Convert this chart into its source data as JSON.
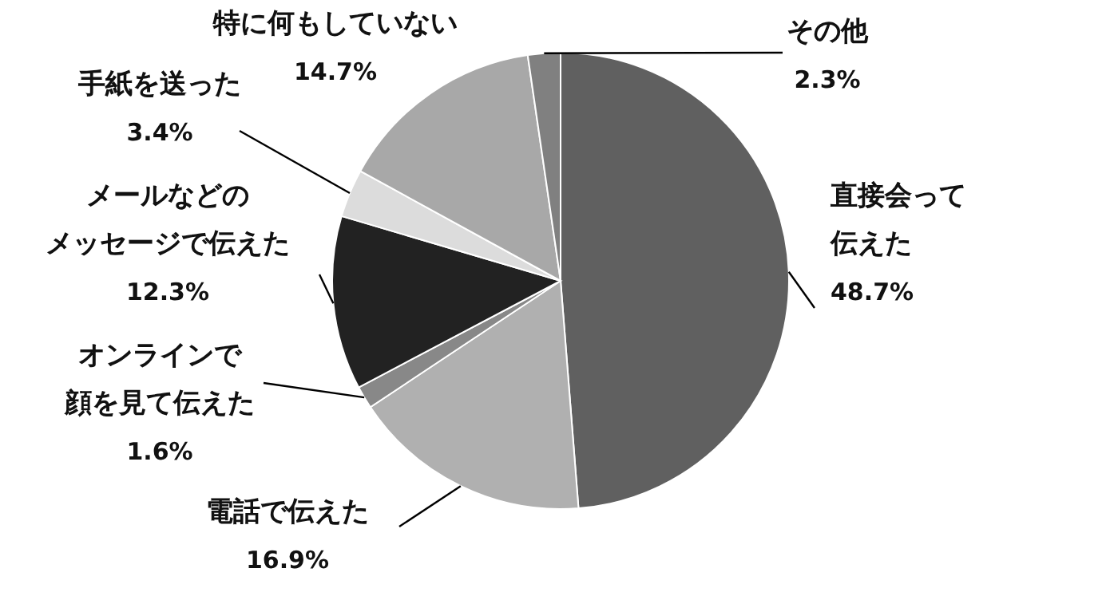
{
  "chart_data": {
    "type": "pie",
    "categories": [
      "直接会って伝えた",
      "電話で伝えた",
      "オンラインで顔を見て伝えた",
      "メールなどのメッセージで伝えた",
      "手紙を送った",
      "特に何もしていない",
      "その他"
    ],
    "values": [
      48.7,
      16.9,
      1.6,
      12.3,
      3.4,
      14.7,
      2.3
    ],
    "value_labels": [
      "48.7%",
      "16.9%",
      "1.6%",
      "12.3%",
      "3.4%",
      "14.7%",
      "2.3%"
    ],
    "colors": [
      "#606060",
      "#b0b0b0",
      "#888888",
      "#222222",
      "#dcdcdc",
      "#a8a8a8",
      "#808080"
    ]
  }
}
